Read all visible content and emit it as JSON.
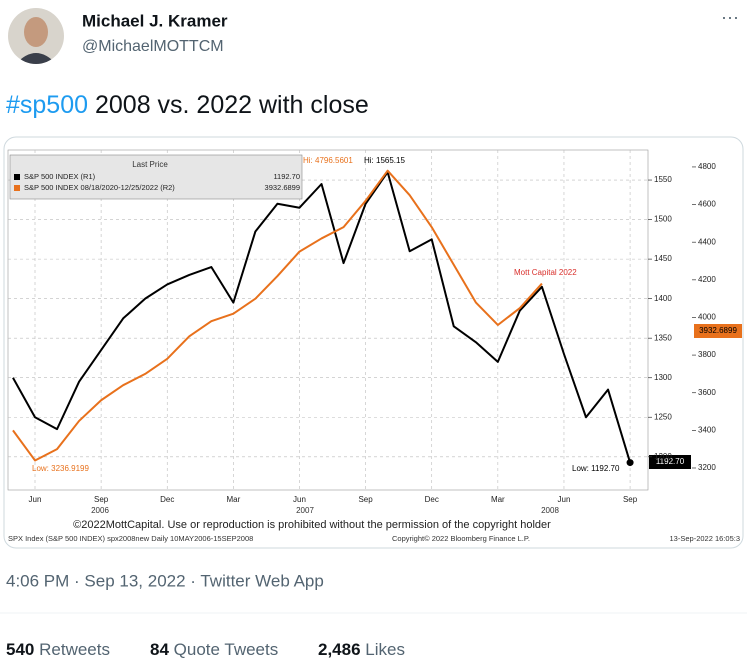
{
  "header": {
    "name": "Michael J. Kramer",
    "handle": "@MichaelMOTTCM",
    "menu": "···"
  },
  "tweet": {
    "hashtag": "#sp500",
    "text": "2008 vs. 2022 with close"
  },
  "chart_data": {
    "type": "line",
    "legend_title": "Last Price",
    "categories": [
      null,
      "Jun",
      null,
      null,
      "Sep",
      null,
      null,
      "Dec",
      null,
      null,
      "Mar",
      null,
      null,
      "Jun",
      null,
      null,
      "Sep",
      null,
      null,
      "Dec",
      null,
      null,
      "Mar",
      null,
      null,
      "Jun",
      null,
      null,
      "Sep"
    ],
    "years": [
      "2006",
      "2007",
      "2008"
    ],
    "series": [
      {
        "name": "S&P 500 INDEX  (R1)",
        "legend_value": "1192.70",
        "color": "#000000",
        "values": [
          1300,
          1250,
          1235,
          1295,
          1335,
          1375,
          1400,
          1418,
          1430,
          1440,
          1395,
          1485,
          1520,
          1515,
          1545,
          1445,
          1520,
          1560,
          1460,
          1475,
          1365,
          1345,
          1320,
          1385,
          1415,
          1330,
          1250,
          1285,
          1192.7
        ]
      },
      {
        "name": "S&P 500 INDEX 08/18/2020-12/25/2022  (R2)",
        "legend_value": "3932.6899",
        "color": "#e8711c",
        "axis": "y2",
        "values": [
          3400,
          3240,
          3300,
          3450,
          3560,
          3640,
          3700,
          3780,
          3900,
          3980,
          4020,
          4100,
          4220,
          4350,
          4420,
          4480,
          4620,
          4780,
          4650,
          4480,
          4280,
          4080,
          3960,
          4050,
          4180,
          null,
          null,
          null,
          null
        ]
      }
    ],
    "ylim": [
      1158,
      1588
    ],
    "yticks": [
      1200,
      1250,
      1300,
      1350,
      1400,
      1450,
      1500,
      1550
    ],
    "y2lim": [
      3083,
      4890
    ],
    "y2ticks": [
      3200,
      3400,
      3600,
      3800,
      4000,
      4200,
      4400,
      4600,
      4800
    ],
    "grid": true,
    "annotations": [
      "Hi: 4796.5601",
      "Hi: 1565.15",
      "Low: 3236.9199",
      "Low: 1192.70",
      "Mott Capital 2022"
    ],
    "copyright": "©2022MottCapital. Use or reproduction is prohibited without the permission of the copyright holder",
    "footer": [
      "SPX Index (S&P 500 INDEX) spx2008new  Daily 10MAY2006-15SEP2008",
      "Copyright© 2022 Bloomberg Finance L.P.",
      "13-Sep-2022 16:05:3"
    ]
  },
  "meta": {
    "time": "4:06 PM · Sep 13, 2022 · Twitter Web App"
  },
  "stats": [
    {
      "count": "540",
      "label": "Retweets"
    },
    {
      "count": "84",
      "label": "Quote Tweets"
    },
    {
      "count": "2,486",
      "label": "Likes"
    }
  ]
}
